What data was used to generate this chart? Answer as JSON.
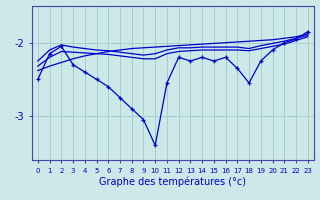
{
  "xlabel": "Graphe des températures (°c)",
  "background_color": "#cce8e8",
  "grid_color": "#aacccc",
  "line_color": "#0000cc",
  "x_ticks": [
    0,
    1,
    2,
    3,
    4,
    5,
    6,
    7,
    8,
    9,
    10,
    11,
    12,
    13,
    14,
    15,
    16,
    17,
    18,
    19,
    20,
    21,
    22,
    23
  ],
  "ylim": [
    -3.6,
    -1.5
  ],
  "yticks": [
    -3.0,
    -2.0
  ],
  "y_main": [
    -2.5,
    -2.15,
    -2.05,
    -2.3,
    -2.4,
    -2.5,
    -2.6,
    -2.75,
    -2.9,
    -3.05,
    -3.4,
    -2.55,
    -2.2,
    -2.25,
    -2.2,
    -2.25,
    -2.2,
    -2.35,
    -2.55,
    -2.25,
    -2.1,
    -2.0,
    -1.95,
    -1.85
  ],
  "y_flat1": [
    -2.32,
    -2.2,
    -2.12,
    -2.13,
    -2.14,
    -2.15,
    -2.16,
    -2.18,
    -2.2,
    -2.22,
    -2.22,
    -2.15,
    -2.12,
    -2.11,
    -2.1,
    -2.1,
    -2.1,
    -2.1,
    -2.11,
    -2.08,
    -2.05,
    -2.02,
    -1.97,
    -1.92
  ],
  "y_flat2": [
    -2.25,
    -2.1,
    -2.03,
    -2.06,
    -2.08,
    -2.1,
    -2.11,
    -2.13,
    -2.15,
    -2.17,
    -2.15,
    -2.1,
    -2.07,
    -2.07,
    -2.06,
    -2.06,
    -2.06,
    -2.06,
    -2.08,
    -2.04,
    -2.01,
    -1.98,
    -1.94,
    -1.9
  ],
  "y_trend": [
    -2.38,
    -2.32,
    -2.27,
    -2.22,
    -2.18,
    -2.15,
    -2.12,
    -2.1,
    -2.08,
    -2.07,
    -2.06,
    -2.05,
    -2.04,
    -2.03,
    -2.02,
    -2.01,
    -2.0,
    -1.99,
    -1.98,
    -1.97,
    -1.96,
    -1.94,
    -1.92,
    -1.88
  ]
}
